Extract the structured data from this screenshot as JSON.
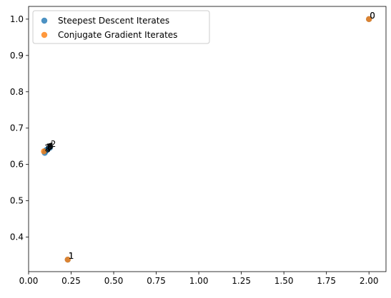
{
  "chart_data": {
    "type": "scatter",
    "title": "",
    "xlabel": "",
    "ylabel": "",
    "xlim": [
      0.0,
      2.1
    ],
    "ylim": [
      0.305,
      1.035
    ],
    "xticks": [
      0.0,
      0.25,
      0.5,
      0.75,
      1.0,
      1.25,
      1.5,
      1.75,
      2.0
    ],
    "xtick_labels": [
      "0.00",
      "0.25",
      "0.50",
      "0.75",
      "1.00",
      "1.25",
      "1.50",
      "1.75",
      "2.00"
    ],
    "yticks": [
      0.4,
      0.5,
      0.6,
      0.7,
      0.8,
      0.9,
      1.0
    ],
    "ytick_labels": [
      "0.4",
      "0.5",
      "0.6",
      "0.7",
      "0.8",
      "0.9",
      "1.0"
    ],
    "grid": false,
    "legend_position": "top-left",
    "series": [
      {
        "name": "Steepest Descent Iterates",
        "color": "#1f77b4",
        "points": [
          {
            "x": 2.0,
            "y": 1.0,
            "label": "0"
          },
          {
            "x": 0.23,
            "y": 0.338,
            "label": "1"
          },
          {
            "x": 0.125,
            "y": 0.646,
            "label": "2"
          },
          {
            "x": 0.1,
            "y": 0.637,
            "label": "3"
          },
          {
            "x": 0.112,
            "y": 0.642,
            "label": "4"
          },
          {
            "x": 0.095,
            "y": 0.632,
            "label": "5"
          },
          {
            "x": 0.108,
            "y": 0.64,
            "label": "6"
          },
          {
            "x": 0.1,
            "y": 0.638,
            "label": "7"
          },
          {
            "x": 0.104,
            "y": 0.639,
            "label": "8"
          }
        ]
      },
      {
        "name": "Conjugate Gradient Iterates",
        "color": "#ff7f0e",
        "points": [
          {
            "x": 2.0,
            "y": 1.0,
            "label": "0"
          },
          {
            "x": 0.23,
            "y": 0.338,
            "label": "1"
          },
          {
            "x": 0.09,
            "y": 0.636,
            "label": "2"
          }
        ]
      }
    ]
  }
}
